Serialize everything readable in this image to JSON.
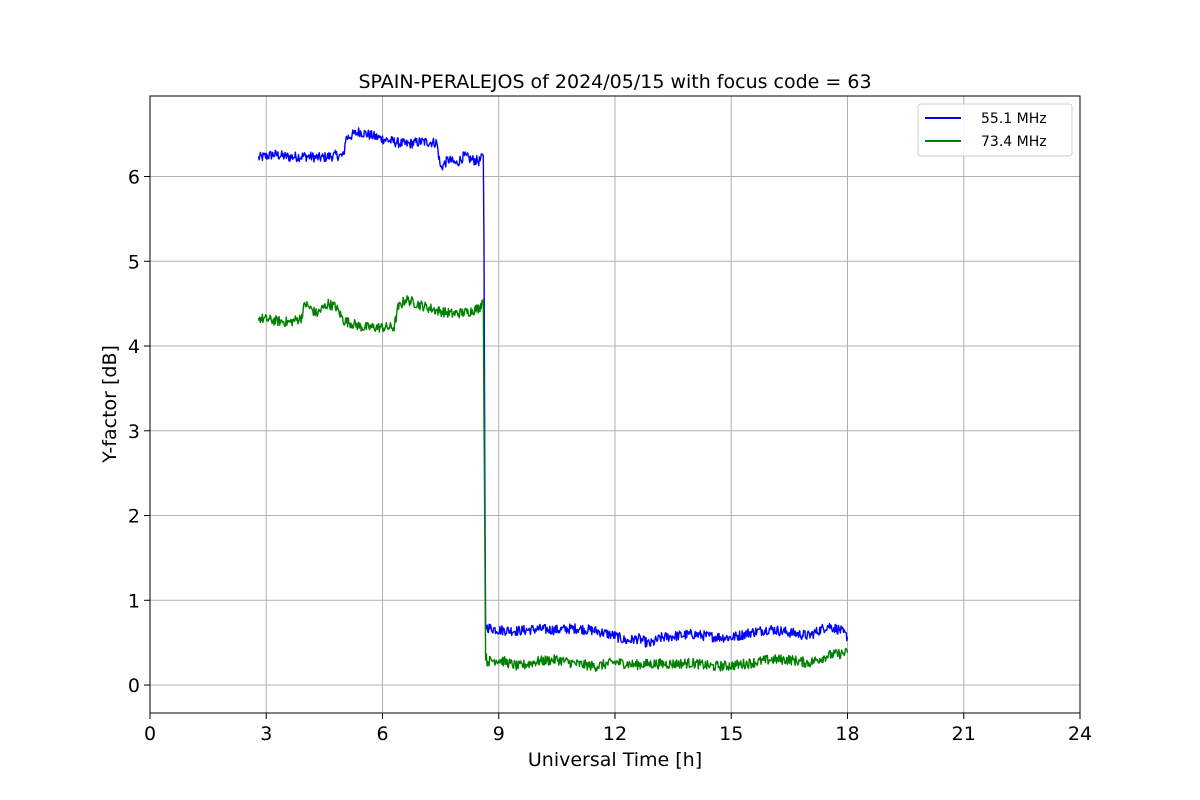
{
  "chart_data": {
    "type": "line",
    "title": "SPAIN-PERALEJOS of 2024/05/15 with focus code = 63",
    "xlabel": "Universal Time [h]",
    "ylabel": "Y-factor [dB]",
    "xlim": [
      0,
      24
    ],
    "ylim": [
      -0.33,
      6.95
    ],
    "xticks": [
      0,
      3,
      6,
      9,
      12,
      15,
      18,
      21,
      24
    ],
    "yticks": [
      0,
      1,
      2,
      3,
      4,
      5,
      6
    ],
    "grid": true,
    "legend_position": "top-right",
    "series": [
      {
        "name": "55.1 MHz",
        "color": "#0000ff",
        "x": [
          2.8,
          3.2,
          3.6,
          4.0,
          4.4,
          4.8,
          5.0,
          5.05,
          5.4,
          5.8,
          6.2,
          6.6,
          7.0,
          7.4,
          7.5,
          7.7,
          7.9,
          8.1,
          8.3,
          8.5,
          8.6,
          8.62,
          8.64,
          8.66,
          8.7,
          9.0,
          9.5,
          10.0,
          10.5,
          11.0,
          11.5,
          12.0,
          12.3,
          12.6,
          12.9,
          13.2,
          13.6,
          14.0,
          14.5,
          15.0,
          15.5,
          16.0,
          16.5,
          17.0,
          17.5,
          17.8,
          18.0
        ],
        "values": [
          6.22,
          6.26,
          6.23,
          6.24,
          6.22,
          6.25,
          6.24,
          6.45,
          6.53,
          6.47,
          6.42,
          6.38,
          6.41,
          6.4,
          6.1,
          6.2,
          6.15,
          6.24,
          6.2,
          6.18,
          6.24,
          5.2,
          2.5,
          0.72,
          0.68,
          0.65,
          0.64,
          0.66,
          0.65,
          0.67,
          0.64,
          0.58,
          0.52,
          0.55,
          0.48,
          0.56,
          0.58,
          0.6,
          0.57,
          0.56,
          0.62,
          0.66,
          0.62,
          0.58,
          0.7,
          0.65,
          0.57
        ]
      },
      {
        "name": "73.4 MHz",
        "color": "#008000",
        "x": [
          2.8,
          3.2,
          3.6,
          3.9,
          4.0,
          4.3,
          4.6,
          4.8,
          5.0,
          5.5,
          6.0,
          6.3,
          6.4,
          6.6,
          7.0,
          7.4,
          7.8,
          8.2,
          8.5,
          8.6,
          8.64,
          8.66,
          8.7,
          9.0,
          9.5,
          10.0,
          10.5,
          11.0,
          11.5,
          12.0,
          12.5,
          13.0,
          13.5,
          14.0,
          14.5,
          15.0,
          15.5,
          16.0,
          16.5,
          17.0,
          17.5,
          18.0
        ],
        "values": [
          4.33,
          4.3,
          4.28,
          4.33,
          4.5,
          4.38,
          4.5,
          4.46,
          4.3,
          4.22,
          4.22,
          4.22,
          4.45,
          4.55,
          4.48,
          4.42,
          4.38,
          4.4,
          4.45,
          4.55,
          1.8,
          0.35,
          0.28,
          0.3,
          0.22,
          0.28,
          0.3,
          0.25,
          0.22,
          0.27,
          0.24,
          0.25,
          0.25,
          0.26,
          0.22,
          0.23,
          0.26,
          0.3,
          0.3,
          0.26,
          0.35,
          0.38
        ]
      }
    ]
  }
}
